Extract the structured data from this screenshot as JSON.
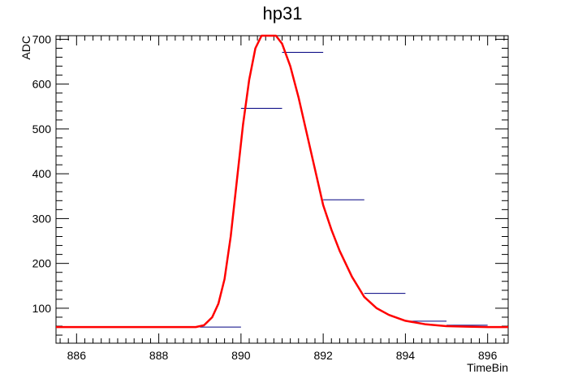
{
  "chart_data": {
    "type": "line",
    "title": "hp31",
    "xlabel": "TimeBin",
    "ylabel": "ADC",
    "xlim": [
      885.5,
      896.5
    ],
    "ylim": [
      22,
      708
    ],
    "x_ticks": [
      "886",
      "888",
      "890",
      "892",
      "894",
      "896"
    ],
    "x_tick_values": [
      886,
      888,
      890,
      892,
      894,
      896
    ],
    "y_ticks": [
      "100",
      "200",
      "300",
      "400",
      "500",
      "600",
      "700"
    ],
    "y_tick_values": [
      100,
      200,
      300,
      400,
      500,
      600,
      700
    ],
    "grid": false,
    "series": [
      {
        "kind": "histogram",
        "color": "#000080",
        "bins": [
          {
            "x0": 889,
            "x1": 890,
            "y": 58
          },
          {
            "x0": 890,
            "x1": 891,
            "y": 546
          },
          {
            "x0": 891,
            "x1": 892,
            "y": 671
          },
          {
            "x0": 892,
            "x1": 893,
            "y": 342
          },
          {
            "x0": 893,
            "x1": 894,
            "y": 133
          },
          {
            "x0": 894,
            "x1": 895,
            "y": 71
          },
          {
            "x0": 895,
            "x1": 896,
            "y": 62
          }
        ]
      },
      {
        "kind": "fit",
        "color": "#ff0000",
        "x": [
          885.5,
          888.0,
          888.9,
          889.1,
          889.3,
          889.45,
          889.6,
          889.75,
          889.9,
          890.05,
          890.2,
          890.35,
          890.5,
          890.6,
          890.85,
          891.0,
          891.2,
          891.4,
          891.6,
          891.8,
          892.0,
          892.2,
          892.4,
          892.7,
          893.0,
          893.3,
          893.6,
          894.0,
          894.5,
          895.0,
          895.5,
          896.0,
          896.5
        ],
        "y": [
          58,
          58,
          58,
          62,
          80,
          110,
          165,
          260,
          385,
          510,
          610,
          680,
          708,
          708,
          708,
          690,
          640,
          570,
          490,
          410,
          330,
          275,
          228,
          170,
          125,
          100,
          85,
          72,
          64,
          60,
          59,
          58,
          58
        ]
      }
    ]
  }
}
